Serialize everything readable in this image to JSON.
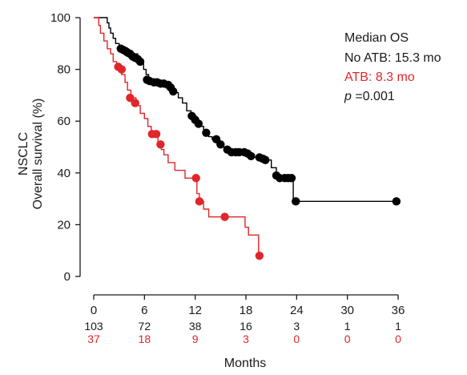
{
  "chart_data": {
    "type": "line",
    "subtype": "kaplan-meier",
    "ylabel_line1": "NSCLC",
    "ylabel_line2": "Overall survival (%)",
    "xlabel": "Months",
    "xlim": [
      0,
      36
    ],
    "ylim": [
      0,
      100
    ],
    "x_ticks": [
      0,
      6,
      12,
      18,
      24,
      30,
      36
    ],
    "y_ticks": [
      0,
      20,
      40,
      60,
      80,
      100
    ],
    "grid": false,
    "legend": {
      "placement": "top-right",
      "title": "Median OS",
      "entries": [
        {
          "label": "No ATB: 15.3 mo",
          "color": "#000000"
        },
        {
          "label": "ATB: 8.3 mo",
          "color": "#e0262a"
        }
      ],
      "p_prefix": "p",
      "p_suffix": "=0.001"
    },
    "series": [
      {
        "color": "#000000",
        "steps": [
          [
            0,
            100
          ],
          [
            1.5,
            100
          ],
          [
            1.6,
            98
          ],
          [
            1.8,
            96
          ],
          [
            2.0,
            94
          ],
          [
            2.3,
            92
          ],
          [
            2.6,
            90
          ],
          [
            3.0,
            89
          ],
          [
            3.4,
            88
          ],
          [
            3.8,
            87
          ],
          [
            4.5,
            86
          ],
          [
            5.2,
            84
          ],
          [
            5.6,
            82
          ],
          [
            5.9,
            80
          ],
          [
            6.2,
            78
          ],
          [
            6.5,
            76
          ],
          [
            7.4,
            75
          ],
          [
            8.5,
            74
          ],
          [
            9.0,
            73
          ],
          [
            9.5,
            71
          ],
          [
            10.0,
            69
          ],
          [
            10.5,
            67
          ],
          [
            11.0,
            64
          ],
          [
            11.5,
            62
          ],
          [
            12.1,
            60
          ],
          [
            12.5,
            58
          ],
          [
            13.0,
            56
          ],
          [
            13.6,
            54
          ],
          [
            14.0,
            53
          ],
          [
            14.5,
            52
          ],
          [
            15.0,
            50
          ],
          [
            15.5,
            49
          ],
          [
            16.0,
            48
          ],
          [
            18.5,
            47
          ],
          [
            19.0,
            46
          ],
          [
            20.2,
            45
          ],
          [
            21.0,
            42
          ],
          [
            21.6,
            39
          ],
          [
            22.5,
            38
          ],
          [
            23.5,
            38
          ],
          [
            23.6,
            29
          ],
          [
            36,
            29
          ]
        ],
        "censored": [
          [
            3.2,
            88
          ],
          [
            3.5,
            87.5
          ],
          [
            3.8,
            87
          ],
          [
            4.0,
            86.5
          ],
          [
            4.3,
            86
          ],
          [
            4.6,
            85
          ],
          [
            4.9,
            84.5
          ],
          [
            5.2,
            84
          ],
          [
            5.5,
            83
          ],
          [
            6.3,
            76
          ],
          [
            6.6,
            75.5
          ],
          [
            7.1,
            75
          ],
          [
            7.5,
            75
          ],
          [
            7.9,
            74.5
          ],
          [
            8.3,
            74.5
          ],
          [
            8.8,
            74
          ],
          [
            9.1,
            73
          ],
          [
            9.4,
            71.5
          ],
          [
            11.6,
            62
          ],
          [
            12.0,
            60.5
          ],
          [
            12.4,
            59
          ],
          [
            13.3,
            55.5
          ],
          [
            14.5,
            53
          ],
          [
            15.0,
            51
          ],
          [
            15.8,
            49
          ],
          [
            16.3,
            48
          ],
          [
            16.8,
            48
          ],
          [
            17.2,
            48
          ],
          [
            17.8,
            48
          ],
          [
            18.2,
            47.5
          ],
          [
            18.6,
            46.5
          ],
          [
            19.6,
            46
          ],
          [
            20.0,
            45.5
          ],
          [
            20.3,
            45
          ],
          [
            21.6,
            39
          ],
          [
            22.0,
            38
          ],
          [
            22.6,
            38
          ],
          [
            23.0,
            38
          ],
          [
            23.4,
            38
          ],
          [
            23.9,
            29
          ],
          [
            35.8,
            29
          ]
        ]
      },
      {
        "color": "#e0262a",
        "steps": [
          [
            0,
            100
          ],
          [
            0.6,
            97
          ],
          [
            0.8,
            94
          ],
          [
            1.2,
            91
          ],
          [
            1.6,
            88
          ],
          [
            2.0,
            86
          ],
          [
            2.3,
            83
          ],
          [
            2.7,
            81
          ],
          [
            3.3,
            78
          ],
          [
            3.7,
            75
          ],
          [
            4.0,
            72
          ],
          [
            4.4,
            69
          ],
          [
            5.0,
            66
          ],
          [
            5.5,
            63
          ],
          [
            6.0,
            61
          ],
          [
            6.4,
            58
          ],
          [
            6.8,
            55
          ],
          [
            7.6,
            52
          ],
          [
            8.0,
            49
          ],
          [
            8.3,
            47
          ],
          [
            8.8,
            44
          ],
          [
            9.6,
            41
          ],
          [
            10.8,
            38
          ],
          [
            12.0,
            38
          ],
          [
            12.2,
            32
          ],
          [
            12.5,
            29
          ],
          [
            13.0,
            26
          ],
          [
            13.6,
            23
          ],
          [
            17.5,
            23
          ],
          [
            17.9,
            19
          ],
          [
            18.3,
            16
          ],
          [
            19.3,
            16
          ],
          [
            19.5,
            8
          ],
          [
            19.6,
            8
          ]
        ],
        "censored": [
          [
            2.9,
            81
          ],
          [
            3.3,
            80
          ],
          [
            4.3,
            69
          ],
          [
            4.9,
            67
          ],
          [
            6.9,
            55
          ],
          [
            7.4,
            55
          ],
          [
            7.9,
            51
          ],
          [
            12.1,
            38
          ],
          [
            12.5,
            29
          ],
          [
            15.5,
            23
          ],
          [
            19.6,
            8
          ]
        ]
      }
    ],
    "risk_table": {
      "times": [
        0,
        6,
        12,
        18,
        24,
        30,
        36
      ],
      "rows": [
        {
          "color": "#1a1a1a",
          "values": [
            "103",
            "72",
            "38",
            "16",
            "3",
            "1",
            "1"
          ]
        },
        {
          "color": "#e0262a",
          "values": [
            "37",
            "18",
            "9",
            "3",
            "0",
            "0",
            "0"
          ]
        }
      ]
    }
  }
}
